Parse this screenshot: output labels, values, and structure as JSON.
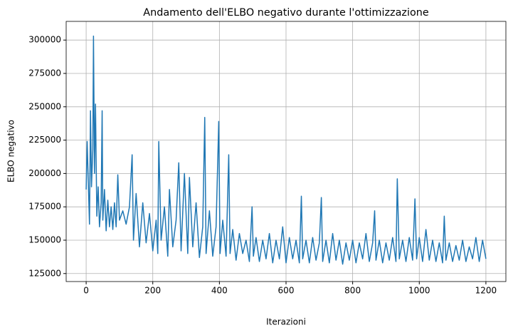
{
  "chart_data": {
    "type": "line",
    "title": "Andamento dell'ELBO negativo durante l'ottimizzazione",
    "x_label": "Iterazioni",
    "y_label": "ELBO negativo",
    "color": "#1f77b4",
    "grid": true,
    "xlim": [
      -60,
      1260
    ],
    "ylim": [
      119000,
      314000
    ],
    "xticks": [
      0,
      200,
      400,
      600,
      800,
      1000,
      1200
    ],
    "yticks": [
      125000,
      150000,
      175000,
      200000,
      225000,
      250000,
      275000,
      300000
    ],
    "x": [
      0,
      3,
      6,
      10,
      13,
      16,
      20,
      22,
      25,
      28,
      32,
      36,
      40,
      45,
      48,
      50,
      55,
      60,
      65,
      70,
      75,
      80,
      85,
      90,
      95,
      100,
      110,
      120,
      130,
      138,
      142,
      150,
      160,
      170,
      180,
      190,
      200,
      210,
      215,
      218,
      225,
      235,
      245,
      250,
      260,
      270,
      278,
      285,
      295,
      305,
      310,
      320,
      330,
      340,
      350,
      356,
      360,
      370,
      380,
      390,
      398,
      402,
      410,
      420,
      428,
      432,
      440,
      450,
      460,
      470,
      480,
      490,
      498,
      502,
      510,
      520,
      530,
      540,
      550,
      560,
      570,
      580,
      590,
      600,
      610,
      620,
      630,
      640,
      646,
      650,
      660,
      670,
      680,
      690,
      700,
      706,
      710,
      720,
      730,
      740,
      750,
      760,
      770,
      780,
      790,
      800,
      810,
      820,
      830,
      840,
      850,
      860,
      866,
      870,
      880,
      890,
      900,
      910,
      920,
      930,
      934,
      940,
      950,
      960,
      970,
      980,
      987,
      992,
      1000,
      1010,
      1020,
      1030,
      1040,
      1050,
      1060,
      1070,
      1075,
      1080,
      1090,
      1100,
      1110,
      1120,
      1130,
      1140,
      1150,
      1160,
      1170,
      1180,
      1190,
      1200
    ],
    "values": [
      188000,
      224000,
      197000,
      162000,
      247000,
      190000,
      218000,
      303000,
      200000,
      252000,
      168000,
      190000,
      160000,
      178000,
      247000,
      165000,
      188000,
      157000,
      180000,
      160000,
      175000,
      158000,
      178000,
      160000,
      199000,
      165000,
      172000,
      162000,
      175000,
      214000,
      150000,
      185000,
      145000,
      178000,
      148000,
      170000,
      142000,
      165000,
      140000,
      224000,
      150000,
      175000,
      138000,
      188000,
      145000,
      165000,
      208000,
      142000,
      200000,
      140000,
      197000,
      145000,
      178000,
      137000,
      160000,
      242000,
      140000,
      172000,
      138000,
      160000,
      239000,
      140000,
      165000,
      138000,
      214000,
      140000,
      158000,
      135000,
      155000,
      140000,
      150000,
      134000,
      175000,
      138000,
      152000,
      134000,
      150000,
      136000,
      155000,
      133000,
      150000,
      136000,
      160000,
      133000,
      152000,
      136000,
      150000,
      133000,
      183000,
      136000,
      150000,
      133000,
      152000,
      135000,
      148000,
      182000,
      134000,
      150000,
      133000,
      155000,
      135000,
      150000,
      132000,
      148000,
      135000,
      150000,
      133000,
      148000,
      136000,
      155000,
      134000,
      148000,
      172000,
      135000,
      150000,
      133000,
      148000,
      135000,
      152000,
      134000,
      196000,
      136000,
      150000,
      134000,
      152000,
      135000,
      181000,
      136000,
      152000,
      134000,
      158000,
      135000,
      150000,
      134000,
      148000,
      133000,
      168000,
      135000,
      148000,
      134000,
      146000,
      135000,
      150000,
      134000,
      145000,
      136000,
      152000,
      134000,
      150000,
      136000
    ]
  }
}
